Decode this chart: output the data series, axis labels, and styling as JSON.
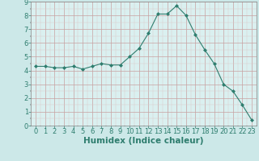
{
  "x": [
    0,
    1,
    2,
    3,
    4,
    5,
    6,
    7,
    8,
    9,
    10,
    11,
    12,
    13,
    14,
    15,
    16,
    17,
    18,
    19,
    20,
    21,
    22,
    23
  ],
  "y": [
    4.3,
    4.3,
    4.2,
    4.2,
    4.3,
    4.1,
    4.3,
    4.5,
    4.4,
    4.4,
    5.0,
    5.6,
    6.7,
    8.1,
    8.1,
    8.7,
    8.0,
    6.6,
    5.5,
    4.5,
    3.0,
    2.5,
    1.5,
    0.4
  ],
  "xlabel": "Humidex (Indice chaleur)",
  "xlim": [
    -0.5,
    23.5
  ],
  "ylim": [
    0,
    9
  ],
  "yticks": [
    0,
    1,
    2,
    3,
    4,
    5,
    6,
    7,
    8,
    9
  ],
  "xticks": [
    0,
    1,
    2,
    3,
    4,
    5,
    6,
    7,
    8,
    9,
    10,
    11,
    12,
    13,
    14,
    15,
    16,
    17,
    18,
    19,
    20,
    21,
    22,
    23
  ],
  "line_color": "#2e7d6e",
  "marker": "D",
  "marker_size": 2.0,
  "bg_color": "#cce8e8",
  "plot_bg_color": "#daf0f0",
  "grid_color_major": "#c8a0a0",
  "grid_color_minor": "#ddc8c8",
  "xlabel_fontsize": 7.5,
  "tick_fontsize": 6.0,
  "tick_color": "#2e7d6e",
  "label_color": "#2e7d6e"
}
